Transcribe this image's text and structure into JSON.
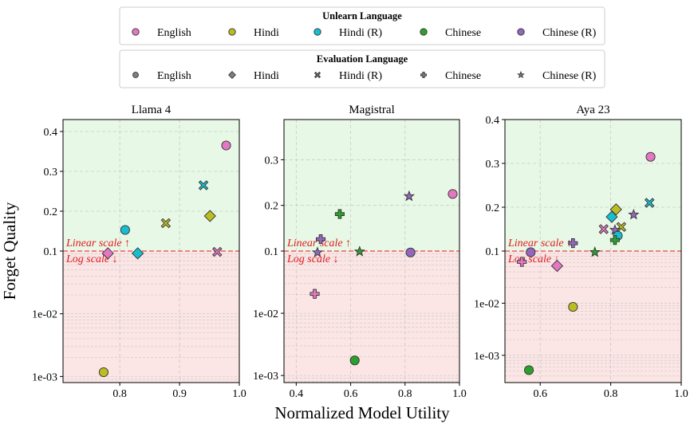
{
  "colors": {
    "English": "#e377c2",
    "Hindi": "#bcbd22",
    "Hindi (R)": "#17becf",
    "Chinese": "#2ca02c",
    "Chinese (R)": "#9467bd",
    "gray": "#808080",
    "linear_region": "#e8f8e6",
    "log_region": "#fbe5e5",
    "threshold": "#e31a1c"
  },
  "legend_unlearn": {
    "title": "Unlearn Language",
    "entries": [
      "English",
      "Hindi",
      "Hindi (R)",
      "Chinese",
      "Chinese (R)"
    ]
  },
  "legend_eval": {
    "title": "Evaluation Language",
    "entries": [
      {
        "label": "English",
        "marker": "circle"
      },
      {
        "label": "Hindi",
        "marker": "diamond"
      },
      {
        "label": "Hindi (R)",
        "marker": "x"
      },
      {
        "label": "Chinese",
        "marker": "plus"
      },
      {
        "label": "Chinese (R)",
        "marker": "star"
      }
    ]
  },
  "labels": {
    "xlabel": "Normalized Model Utility",
    "ylabel": "Forget Quality",
    "linear_note": "Linear scale ↑",
    "log_note": "Log scale ↓"
  },
  "chart_data": [
    {
      "type": "scatter",
      "title": "Llama 4",
      "xlim": [
        0.705,
        1.0
      ],
      "xticks": [
        0.8,
        0.9,
        1.0
      ],
      "xtick_labels": [
        "0.8",
        "0.9",
        "1.0"
      ],
      "linear_ylim": [
        0.1,
        0.43
      ],
      "log_ylim": [
        0.0008,
        0.1
      ],
      "yticks_linear": [
        0.1,
        0.2,
        0.3,
        0.4
      ],
      "ytick_labels_linear": [
        "0.1",
        "0.2",
        "0.3",
        "0.4"
      ],
      "yticks_log": [
        0.01,
        0.001
      ],
      "ytick_labels_log": [
        "1e-02",
        "1e-03"
      ],
      "threshold": 0.1,
      "points": [
        {
          "unlearn": "English",
          "eval": "circle",
          "x": 0.978,
          "y": 0.365
        },
        {
          "unlearn": "Hindi (R)",
          "eval": "x",
          "x": 0.94,
          "y": 0.265
        },
        {
          "unlearn": "Hindi",
          "eval": "diamond",
          "x": 0.951,
          "y": 0.188
        },
        {
          "unlearn": "Hindi",
          "eval": "x",
          "x": 0.877,
          "y": 0.17
        },
        {
          "unlearn": "Hindi (R)",
          "eval": "circle",
          "x": 0.809,
          "y": 0.153
        },
        {
          "unlearn": "English",
          "eval": "x",
          "x": 0.963,
          "y": 0.097
        },
        {
          "unlearn": "English",
          "eval": "diamond",
          "x": 0.78,
          "y": 0.092
        },
        {
          "unlearn": "Hindi (R)",
          "eval": "diamond",
          "x": 0.83,
          "y": 0.092
        },
        {
          "unlearn": "Hindi",
          "eval": "circle",
          "x": 0.773,
          "y": 0.00117
        }
      ]
    },
    {
      "type": "scatter",
      "title": "Magistral",
      "xlim": [
        0.355,
        1.0
      ],
      "xticks": [
        0.4,
        0.6,
        0.8,
        1.0
      ],
      "xtick_labels": [
        "0.4",
        "0.6",
        "0.8",
        "1.0"
      ],
      "linear_ylim": [
        0.1,
        0.388
      ],
      "log_ylim": [
        0.00077,
        0.1
      ],
      "yticks_linear": [
        0.1,
        0.2,
        0.3
      ],
      "ytick_labels_linear": [
        "0.1",
        "0.2",
        "0.3"
      ],
      "yticks_log": [
        0.01,
        0.001
      ],
      "ytick_labels_log": [
        "1e-02",
        "1e-03"
      ],
      "threshold": 0.1,
      "points": [
        {
          "unlearn": "English",
          "eval": "circle",
          "x": 0.975,
          "y": 0.225
        },
        {
          "unlearn": "Chinese (R)",
          "eval": "star",
          "x": 0.815,
          "y": 0.22
        },
        {
          "unlearn": "Chinese",
          "eval": "plus",
          "x": 0.56,
          "y": 0.181
        },
        {
          "unlearn": "Chinese (R)",
          "eval": "plus",
          "x": 0.49,
          "y": 0.126
        },
        {
          "unlearn": "Chinese",
          "eval": "star",
          "x": 0.633,
          "y": 0.098
        },
        {
          "unlearn": "Chinese (R)",
          "eval": "star",
          "x": 0.478,
          "y": 0.095
        },
        {
          "unlearn": "Chinese (R)",
          "eval": "circle",
          "x": 0.82,
          "y": 0.095
        },
        {
          "unlearn": "English",
          "eval": "plus",
          "x": 0.468,
          "y": 0.0205
        },
        {
          "unlearn": "Chinese",
          "eval": "circle",
          "x": 0.615,
          "y": 0.00175
        }
      ]
    },
    {
      "type": "scatter",
      "title": "Aya 23",
      "xlim": [
        0.5,
        1.0
      ],
      "xticks": [
        0.6,
        0.8,
        1.0
      ],
      "xtick_labels": [
        "0.6",
        "0.8",
        "1.0"
      ],
      "linear_ylim": [
        0.1,
        0.4
      ],
      "log_ylim": [
        0.0003,
        0.1
      ],
      "yticks_linear": [
        0.1,
        0.2,
        0.3,
        0.4
      ],
      "ytick_labels_linear": [
        "0.1",
        "0.2",
        "0.3",
        "0.4"
      ],
      "yticks_log": [
        0.01,
        0.001
      ],
      "ytick_labels_log": [
        "1e-02",
        "1e-03"
      ],
      "threshold": 0.1,
      "points": [
        {
          "unlearn": "English",
          "eval": "circle",
          "x": 0.913,
          "y": 0.315
        },
        {
          "unlearn": "Hindi (R)",
          "eval": "x",
          "x": 0.91,
          "y": 0.21
        },
        {
          "unlearn": "Hindi",
          "eval": "diamond",
          "x": 0.815,
          "y": 0.195
        },
        {
          "unlearn": "Chinese (R)",
          "eval": "star",
          "x": 0.865,
          "y": 0.183
        },
        {
          "unlearn": "Hindi (R)",
          "eval": "diamond",
          "x": 0.803,
          "y": 0.178
        },
        {
          "unlearn": "Hindi",
          "eval": "x",
          "x": 0.83,
          "y": 0.155
        },
        {
          "unlearn": "English",
          "eval": "x",
          "x": 0.78,
          "y": 0.15
        },
        {
          "unlearn": "Chinese (R)",
          "eval": "star",
          "x": 0.812,
          "y": 0.148
        },
        {
          "unlearn": "Hindi (R)",
          "eval": "circle",
          "x": 0.82,
          "y": 0.135
        },
        {
          "unlearn": "Chinese",
          "eval": "plus",
          "x": 0.812,
          "y": 0.125
        },
        {
          "unlearn": "Chinese (R)",
          "eval": "plus",
          "x": 0.693,
          "y": 0.118
        },
        {
          "unlearn": "Chinese",
          "eval": "star",
          "x": 0.755,
          "y": 0.095
        },
        {
          "unlearn": "Chinese (R)",
          "eval": "circle",
          "x": 0.573,
          "y": 0.095
        },
        {
          "unlearn": "English",
          "eval": "plus",
          "x": 0.548,
          "y": 0.062
        },
        {
          "unlearn": "English",
          "eval": "diamond",
          "x": 0.648,
          "y": 0.052
        },
        {
          "unlearn": "Hindi",
          "eval": "circle",
          "x": 0.693,
          "y": 0.0085
        },
        {
          "unlearn": "Chinese",
          "eval": "circle",
          "x": 0.568,
          "y": 0.00052
        }
      ]
    }
  ]
}
